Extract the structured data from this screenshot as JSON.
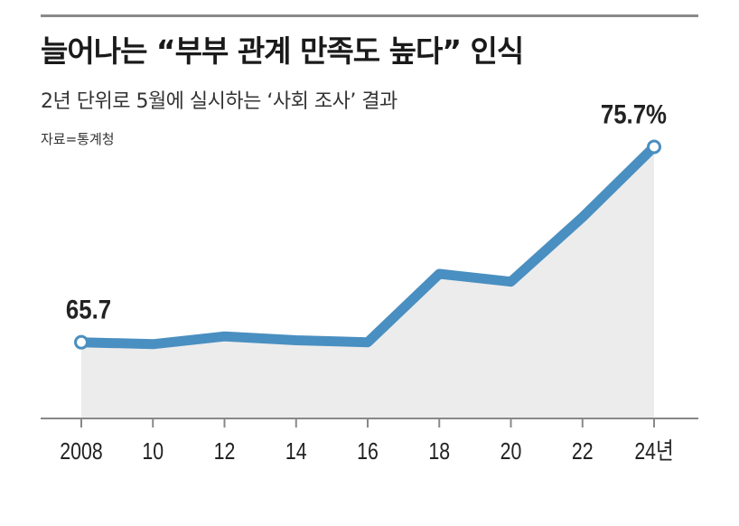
{
  "header": {
    "title": "늘어나는 “부부 관계 만족도 높다” 인식",
    "subtitle": "2년 단위로 5월에 실시하는 ‘사회 조사’ 결과",
    "source": "자료=통계청"
  },
  "colors": {
    "line": "#4a8fc1",
    "area": "#ececec",
    "axis": "#888888",
    "marker_fill": "#ffffff"
  },
  "chart_data": {
    "type": "area",
    "x": [
      2008,
      2010,
      2012,
      2014,
      2016,
      2018,
      2020,
      2022,
      2024
    ],
    "tick_labels": [
      "2008",
      "10",
      "12",
      "14",
      "16",
      "18",
      "20",
      "22",
      "24년"
    ],
    "series": [
      {
        "values": [
          65.7,
          65.6,
          66.0,
          65.8,
          65.7,
          69.2,
          68.8,
          72.1,
          75.7
        ]
      }
    ],
    "data_labels": [
      {
        "index": 0,
        "text": "65.7"
      },
      {
        "index": 8,
        "text": "75.7%"
      }
    ],
    "ylim": [
      61.8,
      76.0
    ],
    "grid": false
  }
}
